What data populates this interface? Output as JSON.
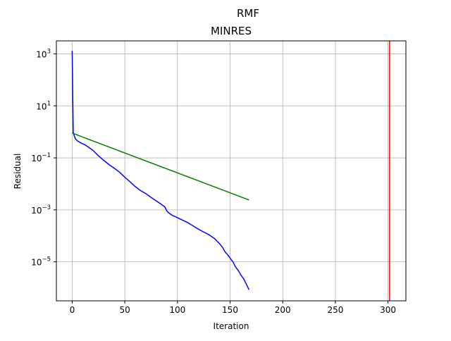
{
  "chart_data": {
    "type": "line",
    "suptitle": "RMF",
    "title": "MINRES",
    "xlabel": "Iteration",
    "ylabel": "Residual",
    "xscale": "linear",
    "yscale": "log",
    "xlim": [
      -15,
      317
    ],
    "ylim_exponent": [
      -6.5,
      3.5
    ],
    "grid": true,
    "xticks": [
      0,
      50,
      100,
      150,
      200,
      250,
      300
    ],
    "xtick_labels": [
      "0",
      "50",
      "100",
      "150",
      "200",
      "250",
      "300"
    ],
    "yticks_exponent": [
      3,
      1,
      -1,
      -3,
      -5
    ],
    "ytick_labels": [
      {
        "base": "10",
        "exp": "3"
      },
      {
        "base": "10",
        "exp": "1"
      },
      {
        "base": "10",
        "exp": "−1"
      },
      {
        "base": "10",
        "exp": "−3"
      },
      {
        "base": "10",
        "exp": "−5"
      }
    ],
    "series": [
      {
        "color": "#0000ff",
        "x": [
          0,
          1,
          2,
          3,
          5,
          8,
          12,
          16,
          20,
          25,
          30,
          35,
          40,
          45,
          50,
          55,
          60,
          65,
          70,
          75,
          80,
          85,
          88,
          90,
          92,
          95,
          100,
          105,
          110,
          115,
          120,
          125,
          130,
          135,
          140,
          143,
          145,
          148,
          150,
          153,
          155,
          158,
          160,
          163,
          165,
          168
        ],
        "y": [
          1300,
          0.95,
          0.7,
          0.55,
          0.45,
          0.38,
          0.32,
          0.25,
          0.19,
          0.12,
          0.08,
          0.055,
          0.04,
          0.028,
          0.018,
          0.012,
          0.0078,
          0.0055,
          0.0042,
          0.003,
          0.0022,
          0.0016,
          0.0013,
          0.0009,
          0.00075,
          0.00062,
          0.0005,
          0.0004,
          0.00032,
          0.00024,
          0.00018,
          0.00014,
          0.00011,
          8e-05,
          5e-05,
          3.5e-05,
          2.5e-05,
          1.8e-05,
          1.4e-05,
          9.5e-06,
          6.5e-06,
          4.5e-06,
          3.2e-06,
          2.2e-06,
          1.5e-06,
          8.5e-07
        ]
      },
      {
        "color": "#008000",
        "x": [
          0,
          168
        ],
        "y": [
          0.9,
          0.0024
        ]
      },
      {
        "color": "#ff0000",
        "type": "vline",
        "x": 301.5
      }
    ]
  }
}
